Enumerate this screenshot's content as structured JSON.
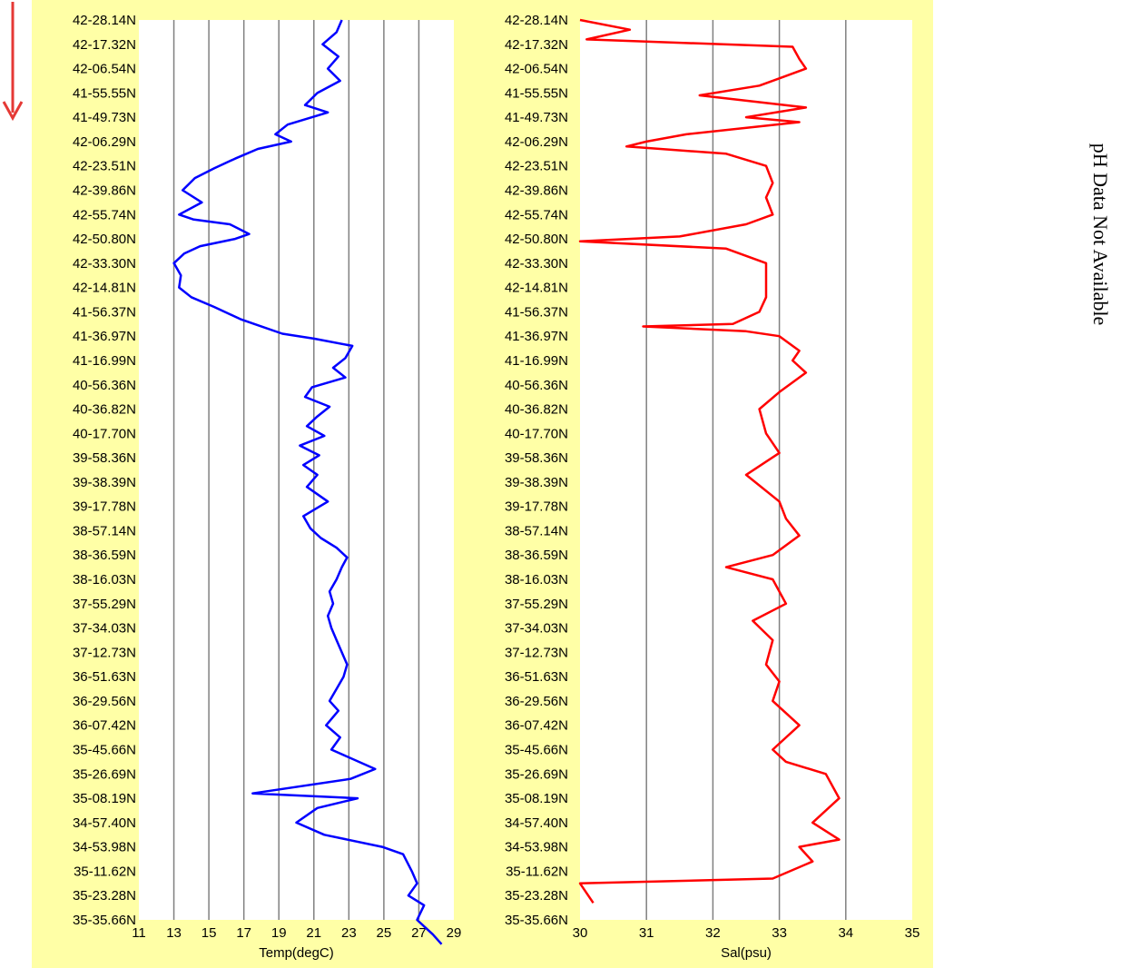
{
  "side_note": "pH Data Not Available",
  "colors": {
    "panel_background": "#ffffa6",
    "plot_background": "#ffffff",
    "gridline": "#808080",
    "arrow": "#e53935"
  },
  "icons": {
    "direction_arrow": "down-arrow-icon"
  },
  "chart_data": [
    {
      "type": "line",
      "orientation": "vertical-profile",
      "title": "",
      "xlabel": "Temp(degC)",
      "ylabel": "",
      "xlim": [
        11,
        29
      ],
      "xticks": [
        "11",
        "13",
        "15",
        "17",
        "19",
        "21",
        "23",
        "25",
        "27",
        "29"
      ],
      "grid": true,
      "y_categories": [
        "42-28.14N",
        "42-17.32N",
        "42-06.54N",
        "41-55.55N",
        "41-49.73N",
        "42-06.29N",
        "42-23.51N",
        "42-39.86N",
        "42-55.74N",
        "42-50.80N",
        "42-33.30N",
        "42-14.81N",
        "41-56.37N",
        "41-36.97N",
        "41-16.99N",
        "40-56.36N",
        "40-36.82N",
        "40-17.70N",
        "39-58.36N",
        "39-38.39N",
        "39-17.78N",
        "38-57.14N",
        "38-36.59N",
        "38-16.03N",
        "37-55.29N",
        "37-34.03N",
        "37-12.73N",
        "36-51.63N",
        "36-29.56N",
        "36-07.42N",
        "35-45.66N",
        "35-26.69N",
        "35-08.19N",
        "34-57.40N",
        "34-53.98N",
        "35-11.62N",
        "35-23.28N",
        "35-35.66N"
      ],
      "series": [
        {
          "color": "#0000ff",
          "points": [
            [
              22.6,
              0
            ],
            [
              22.3,
              0.5
            ],
            [
              21.5,
              1
            ],
            [
              22.4,
              1.5
            ],
            [
              21.8,
              2
            ],
            [
              22.5,
              2.5
            ],
            [
              21.2,
              3
            ],
            [
              20.5,
              3.5
            ],
            [
              21.8,
              3.8
            ],
            [
              19.5,
              4.3
            ],
            [
              18.8,
              4.7
            ],
            [
              19.7,
              5
            ],
            [
              17.8,
              5.3
            ],
            [
              16.5,
              5.7
            ],
            [
              15.3,
              6.1
            ],
            [
              14.2,
              6.5
            ],
            [
              13.5,
              7
            ],
            [
              14.6,
              7.5
            ],
            [
              13.3,
              8
            ],
            [
              14.1,
              8.2
            ],
            [
              16.2,
              8.4
            ],
            [
              17.3,
              8.8
            ],
            [
              16.5,
              9
            ],
            [
              14.5,
              9.3
            ],
            [
              13.6,
              9.6
            ],
            [
              13.0,
              10
            ],
            [
              13.4,
              10.5
            ],
            [
              13.3,
              11
            ],
            [
              14.0,
              11.4
            ],
            [
              15.3,
              11.8
            ],
            [
              16.8,
              12.3
            ],
            [
              17.6,
              12.5
            ],
            [
              19.2,
              12.9
            ],
            [
              21.0,
              13.1
            ],
            [
              23.2,
              13.4
            ],
            [
              22.8,
              13.9
            ],
            [
              22.1,
              14.3
            ],
            [
              22.8,
              14.7
            ],
            [
              20.9,
              15.1
            ],
            [
              20.5,
              15.5
            ],
            [
              21.9,
              15.9
            ],
            [
              21.2,
              16.3
            ],
            [
              20.6,
              16.7
            ],
            [
              21.6,
              17.1
            ],
            [
              20.2,
              17.5
            ],
            [
              21.3,
              17.9
            ],
            [
              20.4,
              18.3
            ],
            [
              21.2,
              18.7
            ],
            [
              20.6,
              19.2
            ],
            [
              21.8,
              19.8
            ],
            [
              20.4,
              20.4
            ],
            [
              20.8,
              20.9
            ],
            [
              21.4,
              21.3
            ],
            [
              22.3,
              21.7
            ],
            [
              22.9,
              22.1
            ],
            [
              22.6,
              22.5
            ],
            [
              22.3,
              23
            ],
            [
              21.9,
              23.5
            ],
            [
              22.1,
              24
            ],
            [
              21.8,
              24.5
            ],
            [
              22.0,
              25
            ],
            [
              22.3,
              25.5
            ],
            [
              22.6,
              26
            ],
            [
              22.9,
              26.5
            ],
            [
              22.7,
              27
            ],
            [
              22.3,
              27.5
            ],
            [
              21.9,
              28
            ],
            [
              22.4,
              28.4
            ],
            [
              21.7,
              29
            ],
            [
              22.5,
              29.5
            ],
            [
              22.0,
              30
            ],
            [
              24.5,
              30.8
            ],
            [
              23.1,
              31.2
            ],
            [
              17.5,
              31.8
            ],
            [
              23.5,
              32
            ],
            [
              21.2,
              32.4
            ],
            [
              20.0,
              33
            ],
            [
              21.6,
              33.5
            ],
            [
              24.9,
              34
            ],
            [
              26.1,
              34.3
            ],
            [
              26.6,
              35
            ],
            [
              26.9,
              35.5
            ],
            [
              26.4,
              36
            ],
            [
              27.3,
              36.4
            ],
            [
              26.9,
              37
            ],
            [
              27.8,
              37.6
            ],
            [
              28.3,
              38
            ]
          ]
        }
      ]
    },
    {
      "type": "line",
      "orientation": "vertical-profile",
      "title": "",
      "xlabel": "Sal(psu)",
      "ylabel": "",
      "xlim": [
        30,
        35
      ],
      "xticks": [
        "30",
        "31",
        "32",
        "33",
        "34",
        "35"
      ],
      "grid": true,
      "y_categories": [
        "42-28.14N",
        "42-17.32N",
        "42-06.54N",
        "41-55.55N",
        "41-49.73N",
        "42-06.29N",
        "42-23.51N",
        "42-39.86N",
        "42-55.74N",
        "42-50.80N",
        "42-33.30N",
        "42-14.81N",
        "41-56.37N",
        "41-36.97N",
        "41-16.99N",
        "40-56.36N",
        "40-36.82N",
        "40-17.70N",
        "39-58.36N",
        "39-38.39N",
        "39-17.78N",
        "38-57.14N",
        "38-36.59N",
        "38-16.03N",
        "37-55.29N",
        "37-34.03N",
        "37-12.73N",
        "36-51.63N",
        "36-29.56N",
        "36-07.42N",
        "35-45.66N",
        "35-26.69N",
        "35-08.19N",
        "34-57.40N",
        "34-53.98N",
        "35-11.62N",
        "35-23.28N",
        "35-35.66N"
      ],
      "series": [
        {
          "color": "#ff0000",
          "points": [
            [
              30.0,
              0
            ],
            [
              30.75,
              0.4
            ],
            [
              30.1,
              0.8
            ],
            [
              33.2,
              1.1
            ],
            [
              33.3,
              1.6
            ],
            [
              33.4,
              2
            ],
            [
              33.0,
              2.4
            ],
            [
              32.7,
              2.7
            ],
            [
              31.8,
              3.1
            ],
            [
              33.4,
              3.6
            ],
            [
              32.5,
              4
            ],
            [
              33.3,
              4.2
            ],
            [
              31.6,
              4.7
            ],
            [
              31.0,
              5
            ],
            [
              30.7,
              5.2
            ],
            [
              32.2,
              5.5
            ],
            [
              32.8,
              6
            ],
            [
              32.9,
              6.7
            ],
            [
              32.8,
              7.3
            ],
            [
              32.9,
              8
            ],
            [
              32.5,
              8.4
            ],
            [
              31.5,
              8.9
            ],
            [
              30.0,
              9.1
            ],
            [
              32.2,
              9.4
            ],
            [
              32.8,
              10
            ],
            [
              32.8,
              10.8
            ],
            [
              32.8,
              11.4
            ],
            [
              32.7,
              12
            ],
            [
              32.3,
              12.5
            ],
            [
              30.95,
              12.6
            ],
            [
              32.5,
              12.8
            ],
            [
              33.0,
              13
            ],
            [
              33.3,
              13.6
            ],
            [
              33.2,
              14
            ],
            [
              33.4,
              14.5
            ],
            [
              33.0,
              15.3
            ],
            [
              32.7,
              16
            ],
            [
              32.8,
              17
            ],
            [
              33.0,
              17.8
            ],
            [
              32.5,
              18.7
            ],
            [
              33.0,
              19.8
            ],
            [
              33.1,
              20.5
            ],
            [
              33.3,
              21.2
            ],
            [
              32.9,
              22
            ],
            [
              32.2,
              22.5
            ],
            [
              32.9,
              23
            ],
            [
              33.1,
              24
            ],
            [
              32.6,
              24.7
            ],
            [
              32.9,
              25.5
            ],
            [
              32.8,
              26.5
            ],
            [
              33.0,
              27.2
            ],
            [
              32.9,
              28
            ],
            [
              33.3,
              29
            ],
            [
              32.9,
              30
            ],
            [
              33.1,
              30.5
            ],
            [
              33.7,
              31
            ],
            [
              33.9,
              32
            ],
            [
              33.5,
              33
            ],
            [
              33.9,
              33.7
            ],
            [
              33.3,
              34
            ],
            [
              33.5,
              34.6
            ],
            [
              32.9,
              35.3
            ],
            [
              30.0,
              35.5
            ],
            [
              30.2,
              36.3
            ]
          ]
        }
      ]
    }
  ]
}
